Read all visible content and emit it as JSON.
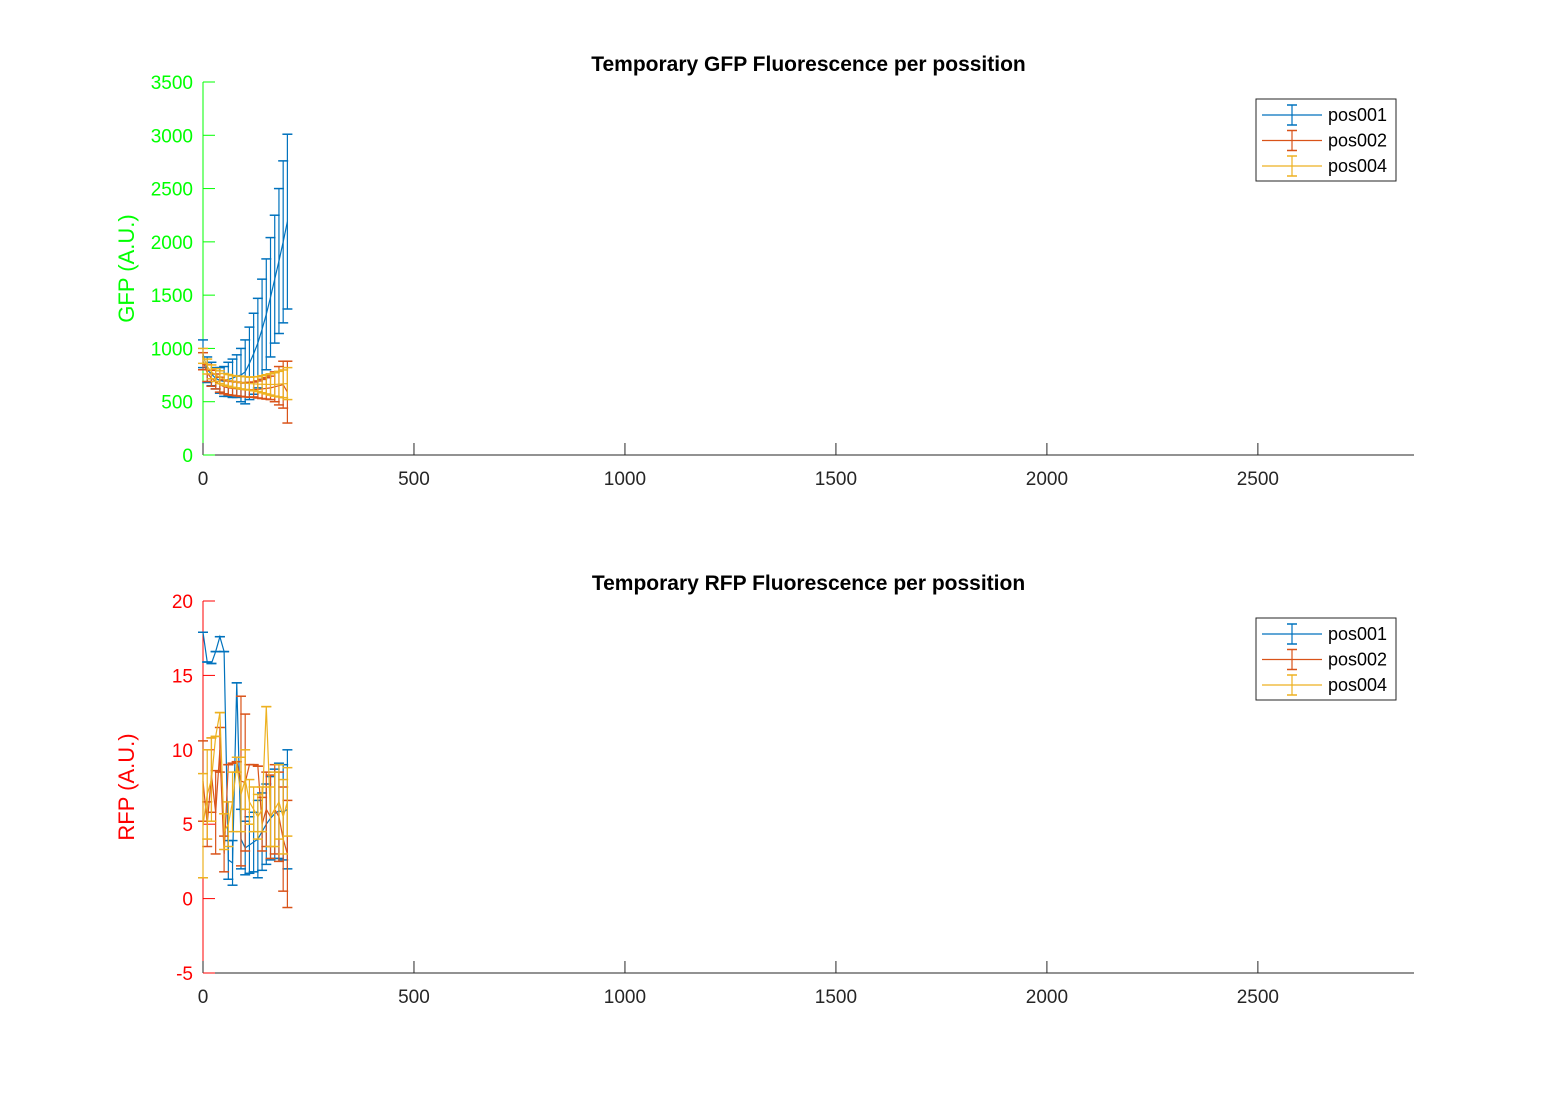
{
  "chart_data": [
    {
      "type": "line",
      "title": "Temporary GFP Fluorescence per possition",
      "xlabel": "",
      "ylabel": "GFP (A.U.)",
      "ylabel_color": "#00FF00",
      "xlim": [
        0,
        2870
      ],
      "ylim": [
        0,
        3500
      ],
      "xticks": [
        0,
        500,
        1000,
        1500,
        2000,
        2500
      ],
      "yticks": [
        0,
        500,
        1000,
        1500,
        2000,
        2500,
        3000,
        3500
      ],
      "legend": "top-right",
      "grid": false,
      "error_bars": true,
      "x": [
        0,
        10,
        20,
        30,
        40,
        50,
        60,
        70,
        80,
        90,
        100,
        110,
        120,
        130,
        140,
        150,
        160,
        170,
        180,
        190,
        200
      ],
      "series": [
        {
          "name": "pos001",
          "color": "#0072BD",
          "values": [
            950,
            800,
            760,
            720,
            700,
            690,
            710,
            720,
            740,
            750,
            780,
            860,
            950,
            1050,
            1180,
            1320,
            1480,
            1650,
            1820,
            2000,
            2190
          ],
          "errors": [
            130,
            120,
            110,
            100,
            120,
            140,
            160,
            180,
            200,
            250,
            300,
            340,
            380,
            420,
            470,
            520,
            560,
            600,
            680,
            760,
            820
          ]
        },
        {
          "name": "pos002",
          "color": "#D95319",
          "values": [
            880,
            770,
            720,
            690,
            660,
            640,
            630,
            625,
            620,
            615,
            610,
            612,
            615,
            615,
            620,
            625,
            630,
            640,
            650,
            660,
            590
          ],
          "errors": [
            80,
            80,
            75,
            70,
            70,
            65,
            65,
            65,
            65,
            65,
            65,
            70,
            70,
            80,
            90,
            100,
            110,
            140,
            180,
            220,
            290
          ]
        },
        {
          "name": "pos004",
          "color": "#EDB120",
          "values": [
            930,
            830,
            780,
            750,
            730,
            710,
            700,
            690,
            685,
            680,
            675,
            670,
            668,
            665,
            664,
            663,
            662,
            662,
            665,
            668,
            670
          ],
          "errors": [
            70,
            70,
            65,
            60,
            60,
            55,
            55,
            55,
            55,
            60,
            60,
            60,
            65,
            70,
            80,
            90,
            100,
            110,
            120,
            130,
            150
          ]
        }
      ]
    },
    {
      "type": "line",
      "title": "Temporary RFP Fluorescence per possition",
      "xlabel": "",
      "ylabel": "RFP (A.U.)",
      "ylabel_color": "#FF0000",
      "xlim": [
        0,
        2870
      ],
      "ylim": [
        -5,
        20
      ],
      "xticks": [
        0,
        500,
        1000,
        1500,
        2000,
        2500
      ],
      "yticks": [
        -5,
        0,
        5,
        10,
        15,
        20
      ],
      "legend": "top-right",
      "grid": false,
      "error_bars": true,
      "x": [
        0,
        10,
        20,
        30,
        40,
        50,
        60,
        70,
        80,
        90,
        100,
        110,
        120,
        130,
        140,
        150,
        160,
        170,
        180,
        190,
        200
      ],
      "series": [
        {
          "name": "pos001",
          "color": "#0072BD",
          "values": [
            17.9,
            15.9,
            15.8,
            16.6,
            17.6,
            16.6,
            2.6,
            2.4,
            14.5,
            4.0,
            3.4,
            3.6,
            3.8,
            4.0,
            4.5,
            5.0,
            5.4,
            5.7,
            5.9,
            5.8,
            6.0
          ],
          "errors": [
            0,
            0,
            0,
            0,
            0,
            0,
            1.3,
            1.5,
            0,
            2.0,
            1.8,
            1.9,
            2.0,
            2.6,
            2.6,
            2.7,
            2.8,
            3.0,
            3.2,
            3.2,
            4.0
          ]
        },
        {
          "name": "pos002",
          "color": "#D95319",
          "values": [
            7.9,
            5.0,
            8.3,
            5.8,
            10.0,
            3.0,
            9.0,
            9.1,
            9.2,
            7.9,
            7.8,
            9.0,
            9.0,
            8.9,
            5.0,
            6.0,
            5.5,
            6.0,
            5.5,
            4.0,
            3.0
          ],
          "errors": [
            2.7,
            1.5,
            2.5,
            2.8,
            1.5,
            1.2,
            0,
            0,
            0,
            5.7,
            4.6,
            0,
            0,
            0,
            1.8,
            2.5,
            2.8,
            3.0,
            3.0,
            3.5,
            3.6
          ]
        },
        {
          "name": "pos004",
          "color": "#EDB120",
          "values": [
            4.9,
            7.0,
            8.0,
            10.9,
            12.5,
            4.5,
            5.0,
            6.5,
            9.0,
            7.0,
            8.0,
            6.5,
            6.0,
            5.5,
            6.0,
            12.9,
            5.5,
            6.0,
            6.5,
            5.5,
            6.5
          ],
          "errors": [
            3.5,
            3.0,
            2.8,
            0,
            0,
            1.2,
            1.5,
            2.0,
            0.5,
            2.5,
            2.0,
            1.5,
            1.5,
            1.5,
            1.5,
            0,
            2.0,
            2.5,
            2.5,
            2.5,
            2.3
          ]
        }
      ]
    }
  ]
}
